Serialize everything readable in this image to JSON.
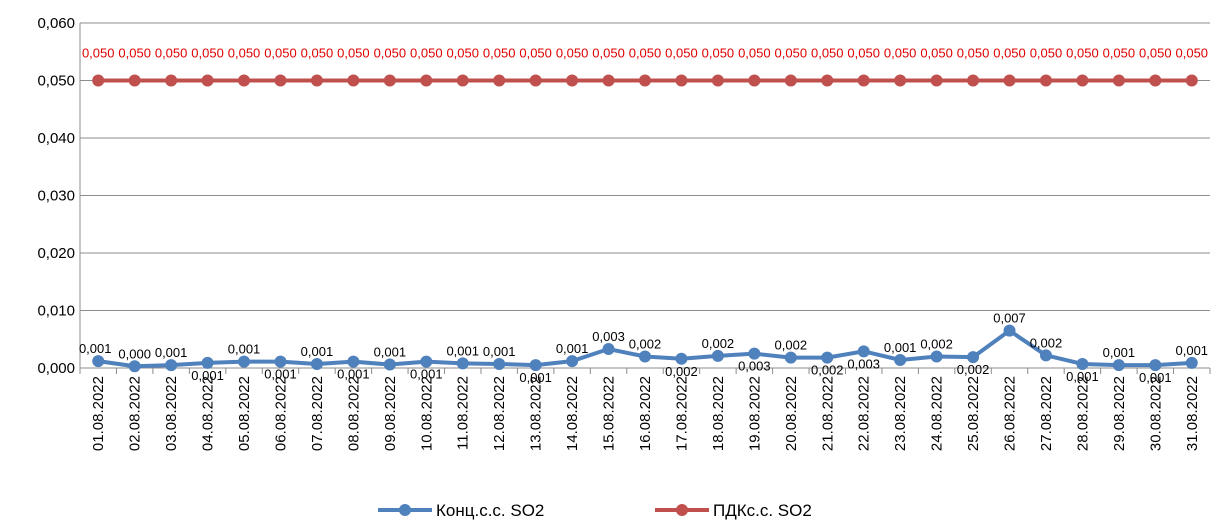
{
  "chart_data": {
    "type": "line",
    "title": "",
    "xlabel": "",
    "ylabel": "",
    "ylim": [
      0,
      0.06
    ],
    "y_ticks": [
      "0,000",
      "0,010",
      "0,020",
      "0,030",
      "0,040",
      "0,050",
      "0,060"
    ],
    "grid": "horizontal",
    "legend_position": "bottom",
    "categories": [
      "01.08.2022",
      "02.08.2022",
      "03.08.2022",
      "04.08.2022",
      "05.08.2022",
      "06.08.2022",
      "07.08.2022",
      "08.08.2022",
      "09.08.2022",
      "10.08.2022",
      "11.08.2022",
      "12.08.2022",
      "13.08.2022",
      "14.08.2022",
      "15.08.2022",
      "16.08.2022",
      "17.08.2022",
      "18.08.2022",
      "19.08.2022",
      "20.08.2022",
      "21.08.2022",
      "22.08.2022",
      "23.08.2022",
      "24.08.2022",
      "25.08.2022",
      "26.08.2022",
      "27.08.2022",
      "28.08.2022",
      "29.08.2022",
      "30.08.2022",
      "31.08.2022"
    ],
    "series": [
      {
        "name": "Конц.с.с. SO2",
        "color": "#4f81bd",
        "values": [
          0.0012,
          0.0003,
          0.0005,
          0.0009,
          0.0011,
          0.0011,
          0.0007,
          0.0011,
          0.0006,
          0.0011,
          0.0008,
          0.0007,
          0.0005,
          0.0012,
          0.0033,
          0.002,
          0.0016,
          0.0021,
          0.0025,
          0.0018,
          0.0018,
          0.0029,
          0.0014,
          0.002,
          0.0019,
          0.0065,
          0.0022,
          0.0007,
          0.0005,
          0.0005,
          0.0009
        ],
        "labels": [
          "0,001",
          "0,000",
          "0,001",
          "0,001",
          "0,001",
          "0,001",
          "0,001",
          "0,001",
          "0,001",
          "0,001",
          "0,001",
          "0,001",
          "0,001",
          "0,001",
          "0,003",
          "0,002",
          "0,002",
          "0,002",
          "0,003",
          "0,002",
          "0,002",
          "0,003",
          "0,001",
          "0,002",
          "0,002",
          "0,007",
          "0,002",
          "0,001",
          "0,001",
          "0,001",
          "0,001"
        ],
        "label_pos": [
          "above",
          "above",
          "above",
          "below",
          "above",
          "below",
          "above",
          "below",
          "above",
          "below",
          "above",
          "above",
          "below",
          "above",
          "above",
          "above",
          "below",
          "above",
          "below",
          "above",
          "below",
          "below",
          "above",
          "above",
          "below",
          "above",
          "above",
          "below",
          "above",
          "below",
          "above"
        ]
      },
      {
        "name": "ПДКс.с. SO2",
        "color": "#c0504d",
        "values": [
          0.05,
          0.05,
          0.05,
          0.05,
          0.05,
          0.05,
          0.05,
          0.05,
          0.05,
          0.05,
          0.05,
          0.05,
          0.05,
          0.05,
          0.05,
          0.05,
          0.05,
          0.05,
          0.05,
          0.05,
          0.05,
          0.05,
          0.05,
          0.05,
          0.05,
          0.05,
          0.05,
          0.05,
          0.05,
          0.05,
          0.05
        ],
        "labels": [
          "0,050",
          "0,050",
          "0,050",
          "0,050",
          "0,050",
          "0,050",
          "0,050",
          "0,050",
          "0,050",
          "0,050",
          "0,050",
          "0,050",
          "0,050",
          "0,050",
          "0,050",
          "0,050",
          "0,050",
          "0,050",
          "0,050",
          "0,050",
          "0,050",
          "0,050",
          "0,050",
          "0,050",
          "0,050",
          "0,050",
          "0,050",
          "0,050",
          "0,050",
          "0,050",
          "0,050"
        ],
        "label_color": "#e00000",
        "label_pos": [
          "above-wide"
        ]
      }
    ]
  }
}
